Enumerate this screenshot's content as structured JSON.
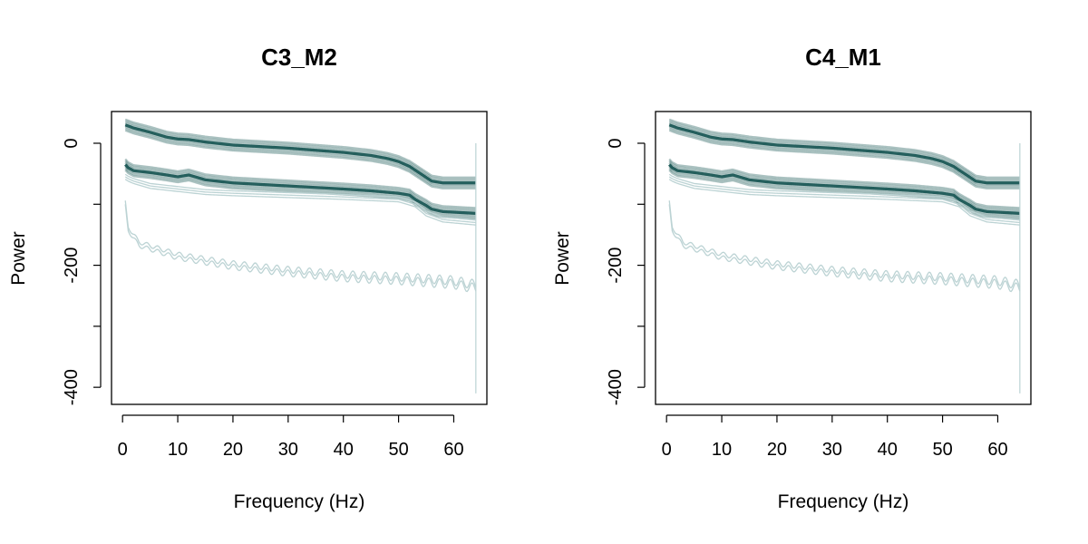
{
  "colors": {
    "dark": "#0e4f4d",
    "light": "#bcd3d4",
    "axis": "#000000"
  },
  "chart_data": [
    {
      "type": "line",
      "title": "C3_M2",
      "xlabel": "Frequency (Hz)",
      "ylabel": "Power",
      "xlim": [
        -2,
        66
      ],
      "ylim": [
        -428,
        52
      ],
      "xticks": [
        0,
        10,
        20,
        30,
        40,
        50,
        60
      ],
      "xtick_labels": [
        "0",
        "10",
        "20",
        "30",
        "40",
        "50",
        "60"
      ],
      "yticks": [
        0,
        -100,
        -200,
        -300,
        -400
      ],
      "ytick_labels": [
        "0",
        "",
        "-200",
        "",
        "-400"
      ],
      "grid": false,
      "series": [
        {
          "style": "dark-band",
          "x": [
            0.5,
            2,
            5,
            8,
            10,
            12,
            15,
            20,
            30,
            40,
            45,
            48,
            50,
            52,
            54,
            56,
            58,
            64
          ],
          "y": [
            30,
            25,
            18,
            10,
            7,
            6,
            2,
            -3,
            -8,
            -15,
            -20,
            -25,
            -30,
            -38,
            -50,
            -62,
            -65,
            -65
          ]
        },
        {
          "style": "dark-band",
          "x": [
            0.5,
            1,
            2,
            5,
            8,
            10,
            12,
            15,
            20,
            30,
            40,
            45,
            50,
            52,
            53,
            55,
            56,
            58,
            64
          ],
          "y": [
            -35,
            -40,
            -45,
            -48,
            -52,
            -55,
            -52,
            -60,
            -65,
            -70,
            -75,
            -78,
            -82,
            -85,
            -92,
            -102,
            -108,
            -112,
            -115
          ]
        },
        {
          "style": "light",
          "x": [
            0.5,
            1,
            2,
            5,
            10,
            15,
            20,
            30,
            40,
            50,
            53,
            55,
            58,
            64
          ],
          "y": [
            -55,
            -58,
            -62,
            -70,
            -75,
            -80,
            -82,
            -85,
            -88,
            -92,
            -100,
            -115,
            -125,
            -130
          ]
        },
        {
          "style": "light-osc",
          "x": [
            0.5,
            1,
            3,
            10,
            20,
            30,
            40,
            50,
            60,
            64
          ],
          "y": [
            -100,
            -140,
            -165,
            -185,
            -200,
            -210,
            -218,
            -222,
            -228,
            -235
          ]
        }
      ]
    },
    {
      "type": "line",
      "title": "C4_M1",
      "xlabel": "Frequency (Hz)",
      "ylabel": "Power",
      "xlim": [
        -2,
        66
      ],
      "ylim": [
        -428,
        52
      ],
      "xticks": [
        0,
        10,
        20,
        30,
        40,
        50,
        60
      ],
      "xtick_labels": [
        "0",
        "10",
        "20",
        "30",
        "40",
        "50",
        "60"
      ],
      "yticks": [
        0,
        -100,
        -200,
        -300,
        -400
      ],
      "ytick_labels": [
        "0",
        "",
        "-200",
        "",
        "-400"
      ],
      "grid": false,
      "series": [
        {
          "style": "dark-band",
          "x": [
            0.5,
            2,
            5,
            8,
            10,
            12,
            15,
            20,
            30,
            40,
            45,
            48,
            50,
            52,
            54,
            56,
            58,
            64
          ],
          "y": [
            30,
            25,
            18,
            10,
            7,
            6,
            2,
            -3,
            -8,
            -15,
            -20,
            -25,
            -30,
            -38,
            -50,
            -62,
            -65,
            -65
          ]
        },
        {
          "style": "dark-band",
          "x": [
            0.5,
            1,
            2,
            5,
            8,
            10,
            12,
            15,
            20,
            30,
            40,
            45,
            50,
            52,
            53,
            55,
            56,
            58,
            64
          ],
          "y": [
            -35,
            -40,
            -45,
            -48,
            -52,
            -55,
            -52,
            -60,
            -65,
            -70,
            -75,
            -78,
            -82,
            -85,
            -92,
            -102,
            -108,
            -112,
            -115
          ]
        },
        {
          "style": "light",
          "x": [
            0.5,
            1,
            2,
            5,
            10,
            15,
            20,
            30,
            40,
            50,
            53,
            55,
            58,
            64
          ],
          "y": [
            -55,
            -58,
            -62,
            -70,
            -75,
            -80,
            -82,
            -85,
            -88,
            -92,
            -100,
            -115,
            -125,
            -130
          ]
        },
        {
          "style": "light-osc",
          "x": [
            0.5,
            1,
            3,
            10,
            20,
            30,
            40,
            50,
            60,
            64
          ],
          "y": [
            -100,
            -140,
            -165,
            -185,
            -200,
            -210,
            -218,
            -222,
            -228,
            -235
          ]
        }
      ]
    }
  ]
}
